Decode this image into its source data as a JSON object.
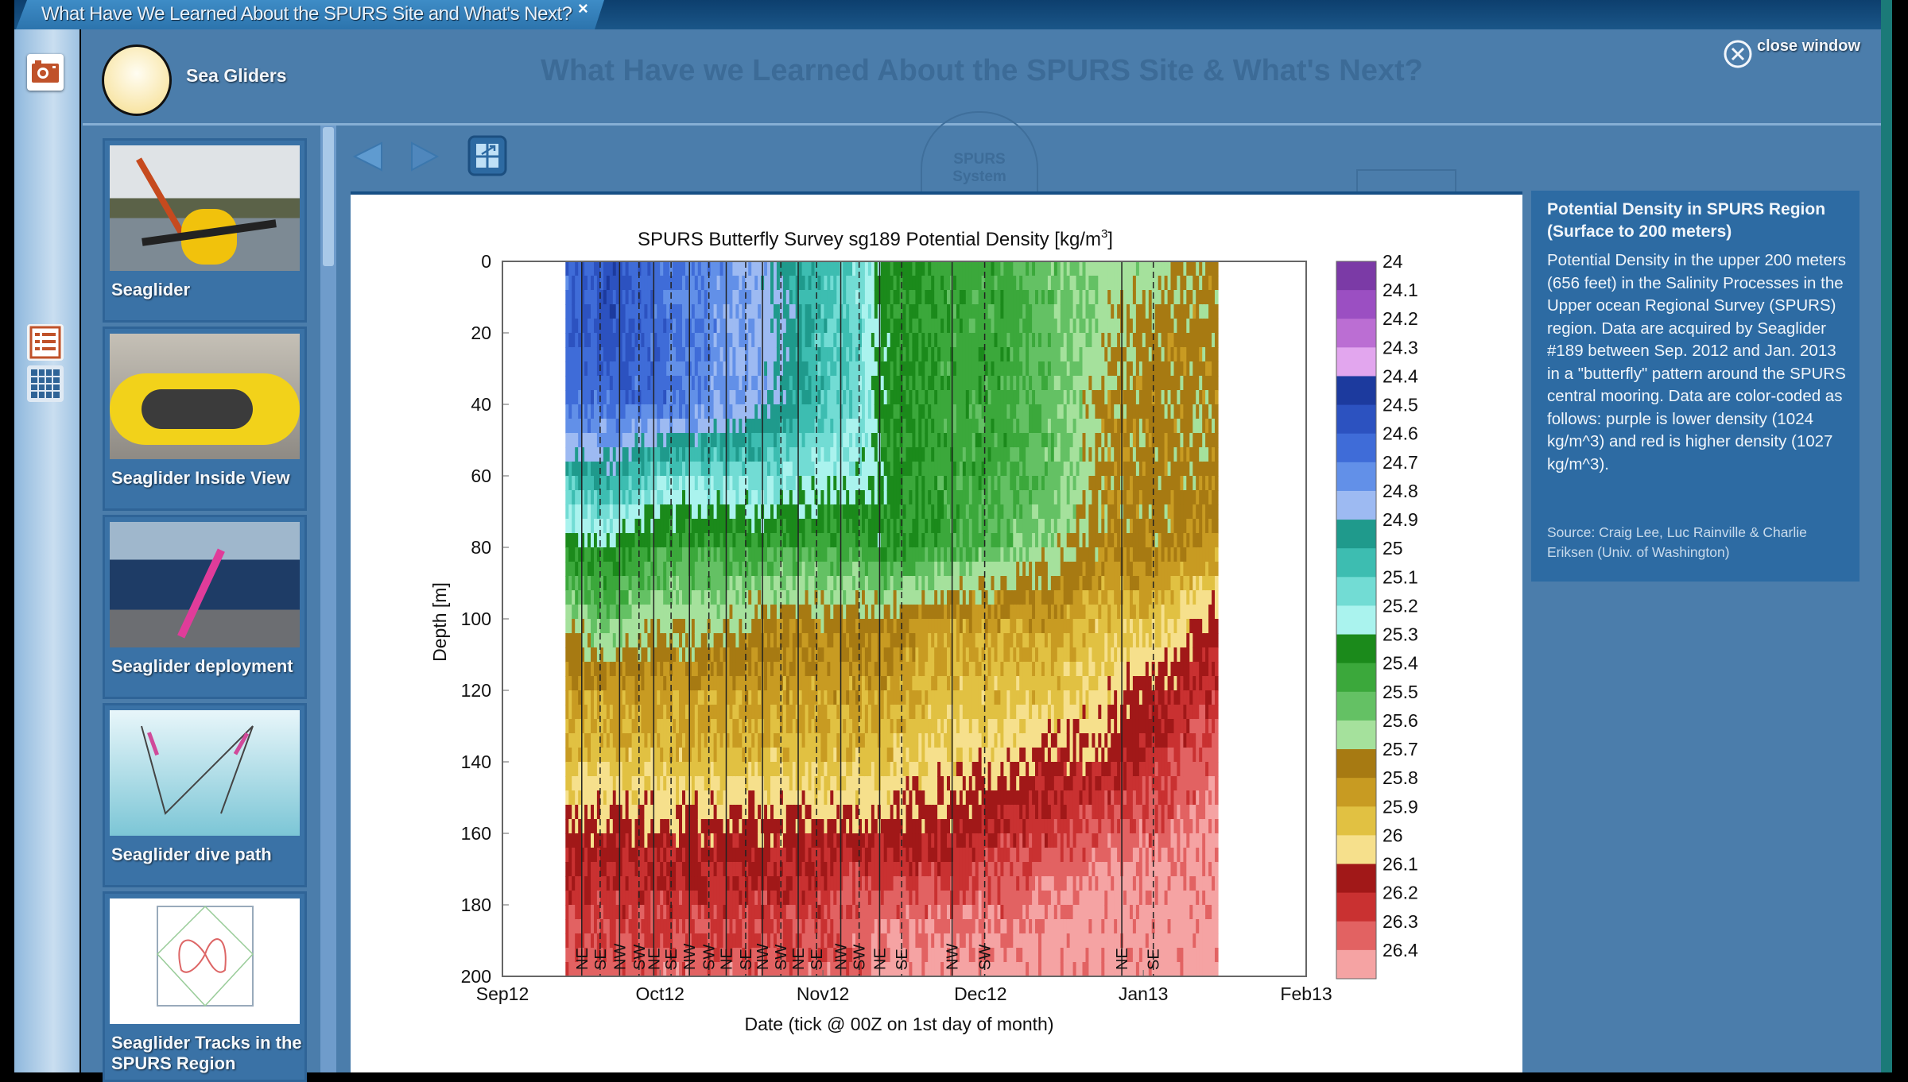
{
  "window": {
    "tab_title": "What Have We Learned About the SPURS Site and What's Next?",
    "tab_close": "×",
    "page_title": "What Have we Learned About the SPURS Site & What's Next?",
    "close_window": "close window",
    "section": "Sea Gliders",
    "ghost_badge": [
      "SPURS",
      "System"
    ]
  },
  "thumbnails": [
    {
      "label": "Seaglider"
    },
    {
      "label": "Seaglider Inside View"
    },
    {
      "label": "Seaglider deployment"
    },
    {
      "label": "Seaglider dive path"
    },
    {
      "label": "Seaglider Tracks in the SPURS Region"
    }
  ],
  "info": {
    "title": "Potential Density in SPURS Region (Surface to 200 meters)",
    "body": "Potential Density in the upper 200 meters (656 feet) in the Salinity Processes in the Upper ocean Regional Survey (SPURS) region. Data are acquired by Seaglider #189 between Sep. 2012 and Jan. 2013 in a \"butterfly\" pattern around the SPURS central mooring. Data are color-coded as follows: purple is lower density (1024 kg/m^3) and red is higher density (1027 kg/m^3).",
    "source": "Source: Craig Lee, Luc Rainville & Charlie Eriksen (Univ. of Washington)"
  },
  "chart_data": {
    "type": "heatmap",
    "title": "SPURS Butterfly Survey sg189  Potential Density [kg/m",
    "title_sup": "3",
    "title_end": "]",
    "xlabel": "Date (tick @ 00Z on 1st day of month)",
    "ylabel": "Depth [m]",
    "x_unit": "days since 2012-09-01",
    "xlim": [
      0,
      153
    ],
    "ylim": [
      0,
      200
    ],
    "y_inverted": true,
    "xticks": [
      {
        "value": 0,
        "label": "Sep12"
      },
      {
        "value": 30,
        "label": "Oct12"
      },
      {
        "value": 61,
        "label": "Nov12"
      },
      {
        "value": 91,
        "label": "Dec12"
      },
      {
        "value": 122,
        "label": "Jan13"
      },
      {
        "value": 153,
        "label": "Feb13"
      }
    ],
    "yticks": [
      0,
      20,
      40,
      60,
      80,
      100,
      120,
      140,
      160,
      180,
      200
    ],
    "colorbar": {
      "levels": [
        "24",
        "24.1",
        "24.2",
        "24.3",
        "24.4",
        "24.5",
        "24.6",
        "24.7",
        "24.8",
        "24.9",
        "25",
        "25.1",
        "25.2",
        "25.3",
        "25.4",
        "25.5",
        "25.6",
        "25.7",
        "25.8",
        "25.9",
        "26",
        "26.1",
        "26.2",
        "26.3",
        "26.4"
      ],
      "colors": [
        "#7b3aa6",
        "#9b4fc2",
        "#bb6ed3",
        "#e2a6ee",
        "#1c3a9e",
        "#2c52c0",
        "#3f6cd8",
        "#6290e8",
        "#9dbaf2",
        "#1f9a8c",
        "#3dbdb1",
        "#72dcd4",
        "#aaf3ee",
        "#1b8a1b",
        "#3ba83b",
        "#64c164",
        "#a5e19c",
        "#a77a12",
        "#c89b22",
        "#e1c142",
        "#f6e08c",
        "#a11818",
        "#c93131",
        "#e26262",
        "#f5a3a3"
      ]
    },
    "depths": [
      0,
      20,
      40,
      60,
      80,
      100,
      120,
      140,
      160,
      180,
      200
    ],
    "days": [
      12,
      20,
      30,
      40,
      50,
      60,
      68,
      72,
      85,
      95,
      105,
      115,
      125,
      136
    ],
    "values": [
      [
        24.6,
        24.6,
        24.6,
        25.0,
        25.3,
        25.6,
        25.8,
        25.9,
        26.1,
        26.2,
        26.3
      ],
      [
        24.5,
        24.5,
        24.6,
        24.9,
        25.3,
        25.5,
        25.8,
        25.9,
        26.1,
        26.2,
        26.3
      ],
      [
        24.6,
        24.6,
        24.6,
        25.1,
        25.4,
        25.6,
        25.8,
        25.9,
        26.1,
        26.2,
        26.3
      ],
      [
        24.7,
        24.7,
        24.7,
        25.1,
        25.4,
        25.6,
        25.8,
        25.9,
        26.1,
        26.2,
        26.3
      ],
      [
        24.8,
        24.8,
        24.8,
        25.1,
        25.4,
        25.7,
        25.8,
        25.9,
        26.1,
        26.2,
        26.3
      ],
      [
        25.0,
        25.0,
        25.0,
        25.2,
        25.4,
        25.7,
        25.8,
        25.9,
        26.1,
        26.2,
        26.3
      ],
      [
        25.1,
        25.1,
        25.1,
        25.2,
        25.4,
        25.7,
        25.8,
        25.9,
        26.1,
        26.3,
        26.3
      ],
      [
        25.3,
        25.3,
        25.3,
        25.3,
        25.3,
        25.7,
        25.8,
        25.9,
        26.1,
        26.3,
        26.4
      ],
      [
        25.4,
        25.4,
        25.4,
        25.4,
        25.4,
        25.8,
        25.9,
        26.0,
        26.1,
        26.3,
        26.4
      ],
      [
        25.4,
        25.4,
        25.4,
        25.4,
        25.5,
        25.8,
        25.9,
        26.0,
        26.2,
        26.3,
        26.4
      ],
      [
        25.5,
        25.5,
        25.5,
        25.5,
        25.6,
        25.8,
        25.9,
        26.1,
        26.2,
        26.4,
        26.4
      ],
      [
        25.6,
        25.6,
        25.7,
        25.7,
        25.7,
        25.9,
        26.0,
        26.1,
        26.3,
        26.4,
        26.4
      ],
      [
        25.6,
        25.7,
        25.7,
        25.7,
        25.7,
        25.9,
        26.1,
        26.2,
        26.3,
        26.4,
        26.4
      ],
      [
        25.7,
        25.7,
        25.7,
        25.7,
        25.8,
        26.1,
        26.2,
        26.3,
        26.4,
        26.4,
        26.4
      ]
    ],
    "direction_markers": [
      {
        "day": 15.1,
        "label": "NE"
      },
      {
        "day": 18.6,
        "label": "SE"
      },
      {
        "day": 22.3,
        "label": "NW"
      },
      {
        "day": 26.0,
        "label": "SW"
      },
      {
        "day": 28.8,
        "label": "NE"
      },
      {
        "day": 32.1,
        "label": "SE"
      },
      {
        "day": 35.6,
        "label": "NW"
      },
      {
        "day": 39.3,
        "label": "SW"
      },
      {
        "day": 42.6,
        "label": "NE"
      },
      {
        "day": 46.3,
        "label": "SE"
      },
      {
        "day": 49.5,
        "label": "NW"
      },
      {
        "day": 53.0,
        "label": "SW"
      },
      {
        "day": 56.3,
        "label": "NE"
      },
      {
        "day": 59.8,
        "label": "SE"
      },
      {
        "day": 64.4,
        "label": "NW"
      },
      {
        "day": 67.9,
        "label": "SW"
      },
      {
        "day": 71.8,
        "label": "NE"
      },
      {
        "day": 76.0,
        "label": "SE"
      },
      {
        "day": 85.6,
        "label": "NW"
      },
      {
        "day": 91.8,
        "label": "SW"
      },
      {
        "day": 117.9,
        "label": "NE"
      },
      {
        "day": 123.9,
        "label": "SE"
      }
    ]
  }
}
